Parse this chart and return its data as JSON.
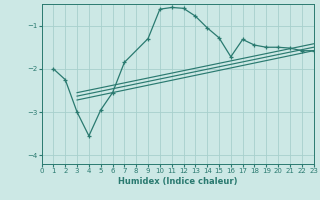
{
  "xlabel": "Humidex (Indice chaleur)",
  "xlim": [
    0,
    23
  ],
  "ylim": [
    -4.2,
    -0.5
  ],
  "yticks": [
    -4,
    -3,
    -2,
    -1
  ],
  "xticks": [
    0,
    1,
    2,
    3,
    4,
    5,
    6,
    7,
    8,
    9,
    10,
    11,
    12,
    13,
    14,
    15,
    16,
    17,
    18,
    19,
    20,
    21,
    22,
    23
  ],
  "bg_color": "#cce8e5",
  "grid_color": "#a8d0cc",
  "line_color": "#2a7a70",
  "curve1_x": [
    1,
    2,
    3,
    4,
    5,
    6,
    7,
    9,
    10,
    11,
    12,
    13,
    14,
    15,
    16,
    17,
    18,
    19,
    20,
    21,
    22,
    23
  ],
  "curve1_y": [
    -2.0,
    -2.25,
    -3.0,
    -3.55,
    -2.95,
    -2.55,
    -1.85,
    -1.3,
    -0.62,
    -0.58,
    -0.6,
    -0.78,
    -1.05,
    -1.28,
    -1.72,
    -1.32,
    -1.45,
    -1.5,
    -1.5,
    -1.52,
    -1.58,
    -1.58
  ],
  "reg_lines": [
    {
      "x": [
        3,
        23
      ],
      "y": [
        -2.55,
        -1.42
      ]
    },
    {
      "x": [
        3,
        23
      ],
      "y": [
        -2.63,
        -1.5
      ]
    },
    {
      "x": [
        3,
        23
      ],
      "y": [
        -2.72,
        -1.58
      ]
    }
  ]
}
